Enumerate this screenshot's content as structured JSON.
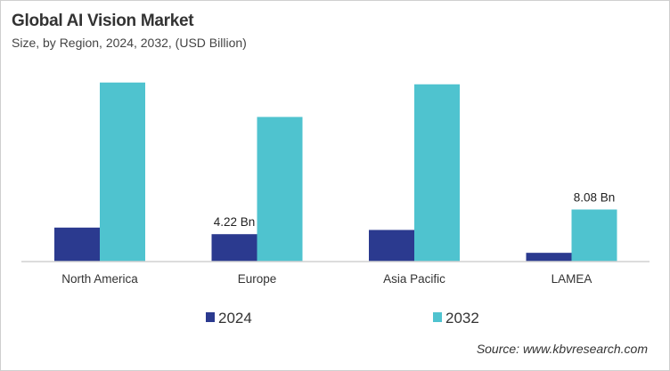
{
  "chart_data": {
    "type": "bar",
    "title": "Global AI Vision Market",
    "subtitle": "Size, by Region, 2024, 2032, (USD Billion)",
    "categories": [
      "North America",
      "Europe",
      "Asia Pacific",
      "LAMEA"
    ],
    "series": [
      {
        "name": "2024",
        "color": "#2b3a8f",
        "values": [
          5.25,
          4.22,
          4.88,
          1.3
        ]
      },
      {
        "name": "2032",
        "color": "#4fc3cf",
        "values": [
          27.96,
          22.57,
          27.68,
          8.08
        ]
      }
    ],
    "data_labels": [
      {
        "series": 0,
        "category": 1,
        "text": "4.22 Bn"
      },
      {
        "series": 1,
        "category": 3,
        "text": "8.08 Bn"
      }
    ],
    "ylim": [
      0,
      30
    ],
    "grid": false,
    "legend_position": "bottom",
    "xlabel": "",
    "ylabel": "",
    "source": "Source: www.kbvresearch.com"
  }
}
